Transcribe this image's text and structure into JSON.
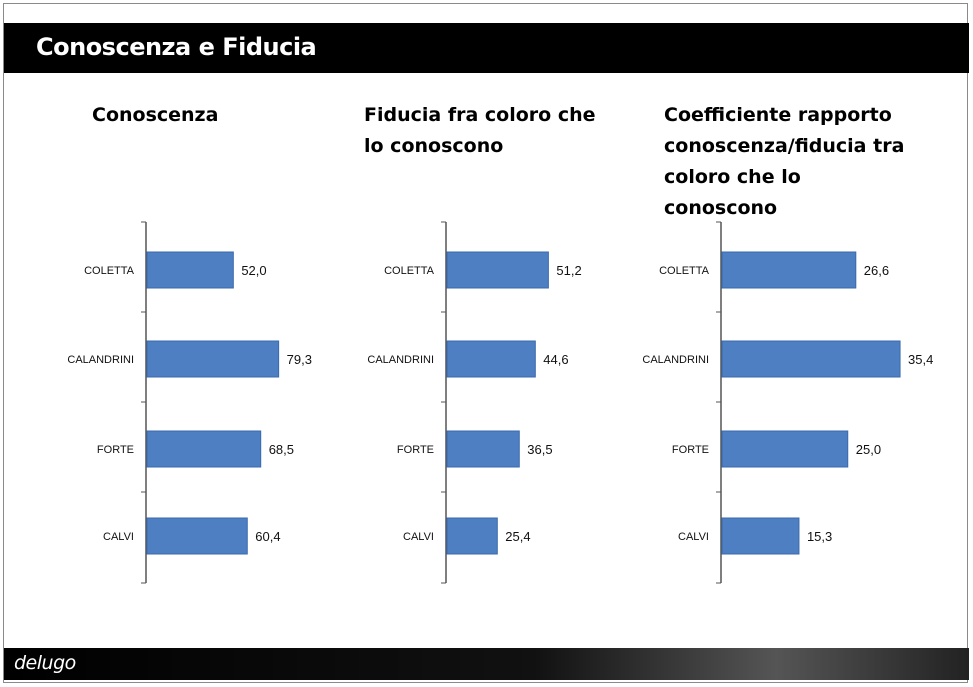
{
  "header": {
    "title": "Conoscenza e Fiducia"
  },
  "footer": {
    "logo_text": "delugo"
  },
  "colors": {
    "bar": "#4f7fc3",
    "bar_stroke": "#3a6aac",
    "header_bg": "#000000"
  },
  "chart_data": [
    {
      "type": "bar",
      "orientation": "horizontal",
      "title_lines": [
        "Conoscenza"
      ],
      "categories": [
        "COLETTA",
        "CALANDRINI",
        "FORTE",
        "CALVI"
      ],
      "values": [
        52.0,
        79.3,
        68.5,
        60.4
      ],
      "value_labels": [
        "52,0",
        "79,3",
        "68,5",
        "60,4"
      ]
    },
    {
      "type": "bar",
      "orientation": "horizontal",
      "title_lines": [
        "Fiducia fra coloro che",
        "lo conoscono"
      ],
      "categories": [
        "COLETTA",
        "CALANDRINI",
        "FORTE",
        "CALVI"
      ],
      "values": [
        51.2,
        44.6,
        36.5,
        25.4
      ],
      "value_labels": [
        "51,2",
        "44,6",
        "36,5",
        "25,4"
      ]
    },
    {
      "type": "bar",
      "orientation": "horizontal",
      "title_lines": [
        "Coefficiente rapporto",
        "conoscenza/fiducia tra",
        "coloro che lo",
        "conoscono"
      ],
      "categories": [
        "COLETTA",
        "CALANDRINI",
        "FORTE",
        "CALVI"
      ],
      "values": [
        26.6,
        35.4,
        25.0,
        15.3
      ],
      "value_labels": [
        "26,6",
        "35,4",
        "25,0",
        "15,3"
      ]
    }
  ]
}
